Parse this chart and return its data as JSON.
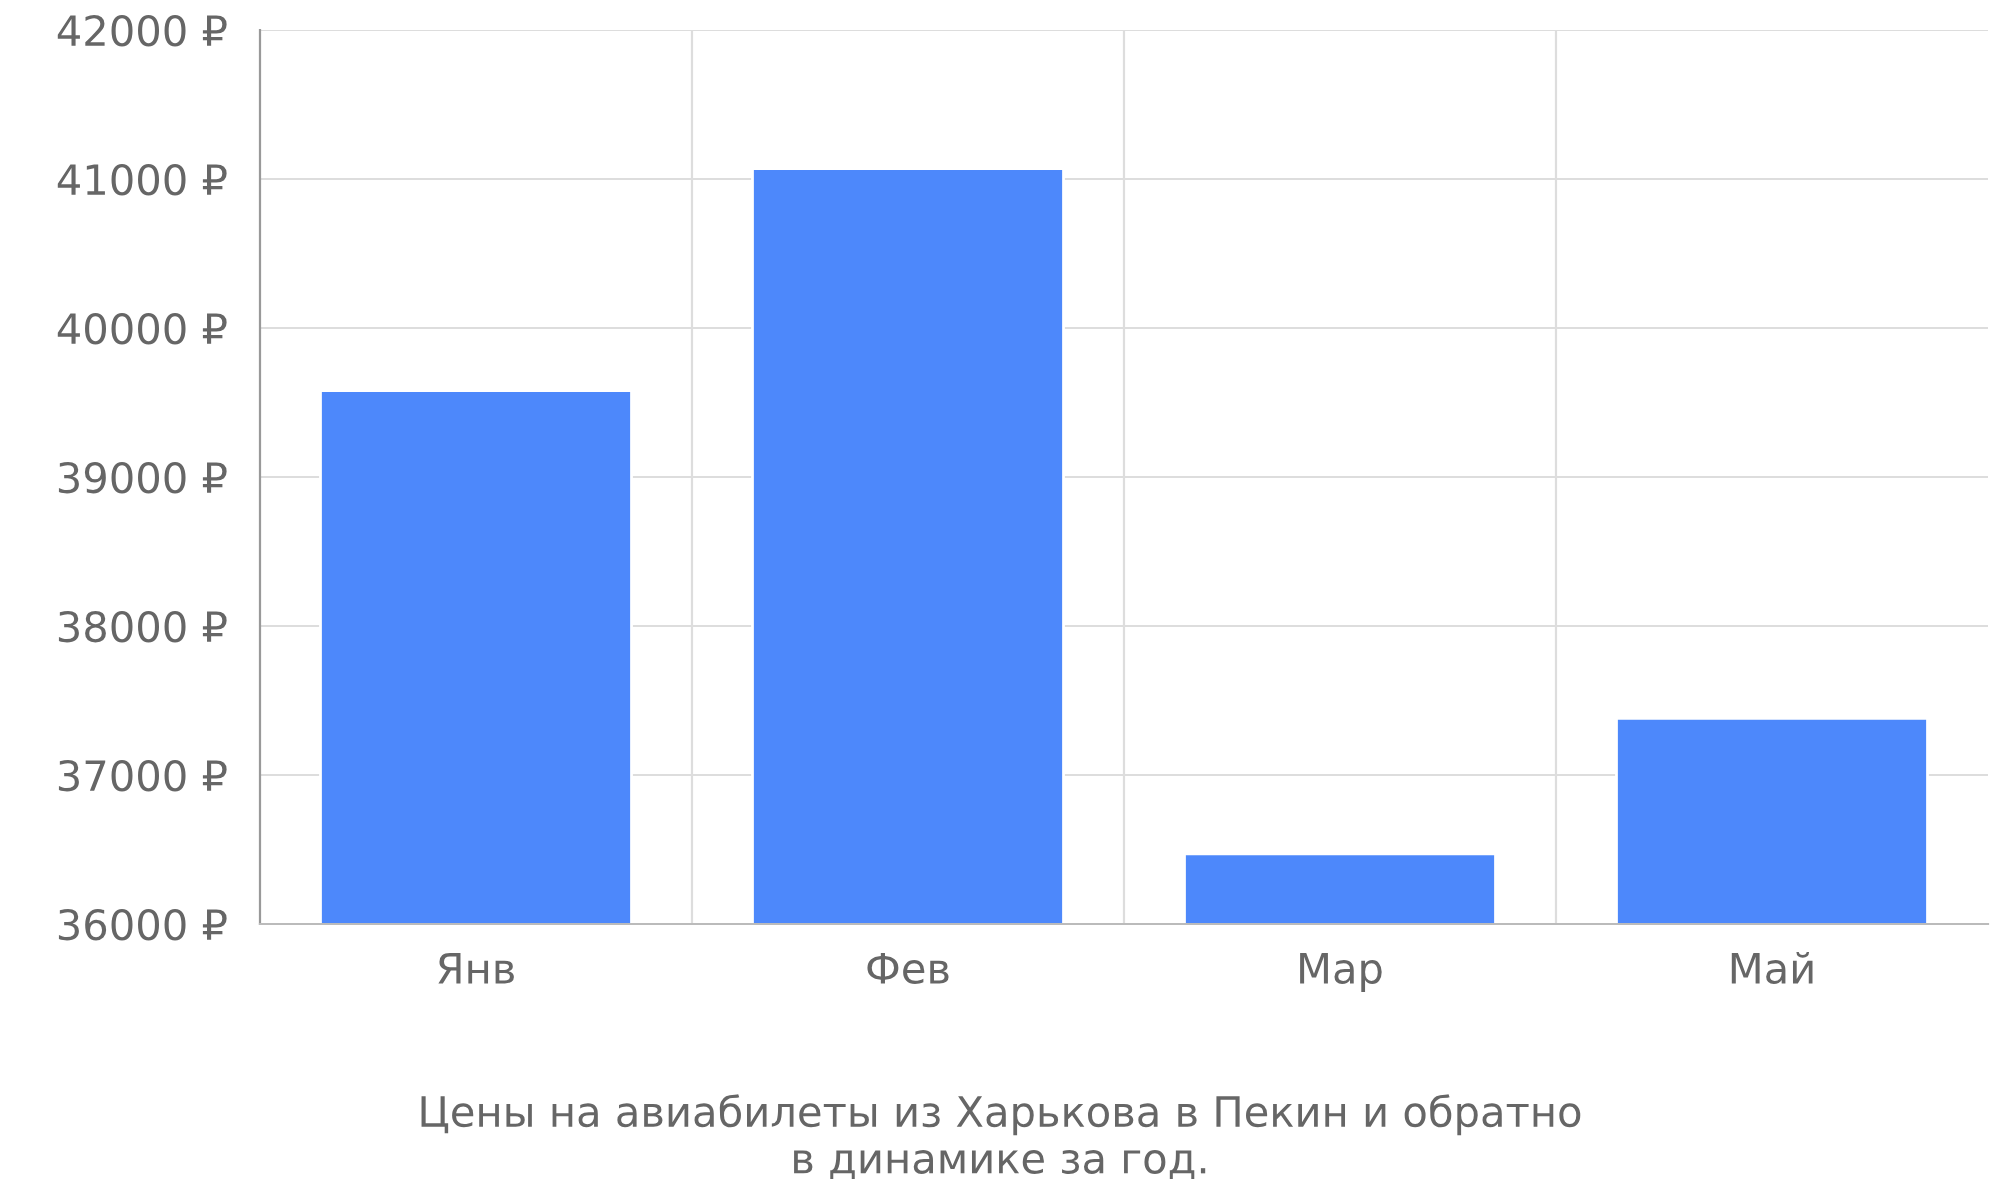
{
  "chart_data": {
    "type": "bar",
    "title": "Цены на авиабилеты из Харькова в Пекин и обратно\nв динамике за год.",
    "categories": [
      "Янв",
      "Фев",
      "Мар",
      "Май"
    ],
    "values": [
      39580,
      41070,
      36470,
      37380
    ],
    "color": "#4d88fb",
    "ylim": [
      36000,
      42000
    ],
    "yticks": [
      {
        "value": 36000,
        "label": "36000 ₽"
      },
      {
        "value": 37000,
        "label": "37000 ₽"
      },
      {
        "value": 38000,
        "label": "38000 ₽"
      },
      {
        "value": 39000,
        "label": "39000 ₽"
      },
      {
        "value": 40000,
        "label": "40000 ₽"
      },
      {
        "value": 41000,
        "label": "41000 ₽"
      },
      {
        "value": 42000,
        "label": "42000 ₽"
      }
    ],
    "grid": true
  }
}
